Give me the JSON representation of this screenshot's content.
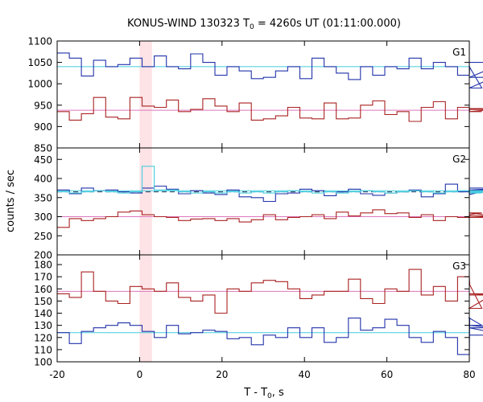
{
  "chart_data": {
    "type": "line",
    "title": "KONUS-WIND 130323 T",
    "title_sub": "0",
    "title_rest": " = 4260s UT (01:11:00.000)",
    "ylabel": "counts / sec",
    "xlabel_main": "T - T",
    "xlabel_sub": "0",
    "xlabel_rest": ", s",
    "xlim": [
      -20,
      80
    ],
    "xticks": [
      -20,
      0,
      20,
      40,
      60,
      80
    ],
    "shade": [
      0,
      3
    ],
    "bin_width": 2.944,
    "bin_start": -20,
    "panels": [
      {
        "name": "G1",
        "ylim": [
          850,
          1100
        ],
        "yticks": [
          850,
          900,
          950,
          1000,
          1050,
          1100
        ],
        "series": [
          {
            "color": "#2233aa",
            "values": [
              1072,
              1060,
              1018,
              1055,
              1040,
              1045,
              1060,
              1040,
              1065,
              1040,
              1035,
              1070,
              1050,
              1020,
              1040,
              1030,
              1012,
              1015,
              1030,
              1040,
              1012,
              1060,
              1040,
              1025,
              1010,
              1040,
              1020,
              1040,
              1035,
              1060,
              1035,
              1050,
              1040,
              1020,
              1040,
              990,
              1015,
              1050
            ]
          },
          {
            "color": "#aa2222",
            "values": [
              935,
              915,
              930,
              968,
              922,
              918,
              968,
              948,
              945,
              962,
              935,
              940,
              965,
              948,
              935,
              955,
              915,
              918,
              925,
              945,
              920,
              918,
              955,
              918,
              920,
              950,
              960,
              928,
              935,
              912,
              945,
              958,
              918,
              945,
              935,
              935,
              940,
              942
            ]
          }
        ],
        "fit_lines": [
          {
            "color": "#44ccdd",
            "value": 1040
          },
          {
            "color": "#dd77bb",
            "value": 938
          }
        ]
      },
      {
        "name": "G2",
        "ylim": [
          200,
          480
        ],
        "yticks": [
          200,
          250,
          300,
          350,
          400,
          450
        ],
        "series": [
          {
            "color": "#2233aa",
            "values": [
              370,
              360,
              375,
              368,
              370,
              365,
              362,
              375,
              380,
              372,
              360,
              368,
              362,
              358,
              370,
              352,
              350,
              340,
              360,
              362,
              372,
              368,
              355,
              365,
              372,
              360,
              356,
              362,
              365,
              370,
              352,
              360,
              385,
              365,
              358,
              365,
              370,
              375
            ]
          },
          {
            "color": "#aa2222",
            "values": [
              272,
              295,
              290,
              295,
              300,
              312,
              315,
              305,
              300,
              298,
              290,
              294,
              295,
              290,
              295,
              286,
              292,
              305,
              292,
              298,
              300,
              305,
              295,
              312,
              302,
              310,
              318,
              308,
              310,
              298,
              305,
              290,
              300,
              298,
              305,
              310,
              302,
              298
            ]
          },
          {
            "color": "#44ccdd",
            "values": [
              365,
              362,
              365,
              368,
              365,
              362,
              365,
              432,
              370,
              370,
              365,
              362,
              365,
              362,
              365,
              362,
              365,
              362,
              365,
              368,
              365,
              362,
              365,
              362,
              365,
              368,
              365,
              362,
              365,
              368,
              365,
              362,
              365,
              368,
              365,
              362,
              365,
              368
            ]
          }
        ],
        "fit_lines": [
          {
            "color": "#223355",
            "value": 365,
            "dashed": true
          },
          {
            "color": "#44ccdd",
            "value": 368
          },
          {
            "color": "#dd77bb",
            "value": 300
          }
        ]
      },
      {
        "name": "G3",
        "ylim": [
          100,
          188
        ],
        "yticks": [
          100,
          110,
          120,
          130,
          140,
          150,
          160,
          170,
          180
        ],
        "series": [
          {
            "color": "#aa2222",
            "values": [
              156,
              153,
              174,
              158,
              150,
              148,
              162,
              160,
              158,
              165,
              153,
              150,
              155,
              140,
              160,
              158,
              165,
              167,
              166,
              160,
              152,
              155,
              158,
              158,
              168,
              152,
              148,
              160,
              158,
              176,
              155,
              162,
              150,
              170,
              164,
              144,
              156,
              155
            ]
          },
          {
            "color": "#2233aa",
            "values": [
              124,
              115,
              125,
              128,
              130,
              132,
              130,
              125,
              120,
              130,
              123,
              124,
              126,
              125,
              119,
              120,
              114,
              122,
              120,
              128,
              120,
              128,
              116,
              120,
              136,
              126,
              128,
              135,
              130,
              120,
              116,
              125,
              120,
              106,
              136,
              130,
              128,
              122
            ]
          }
        ],
        "fit_lines": [
          {
            "color": "#dd77bb",
            "value": 158
          },
          {
            "color": "#44ccdd",
            "value": 124
          }
        ]
      }
    ]
  }
}
